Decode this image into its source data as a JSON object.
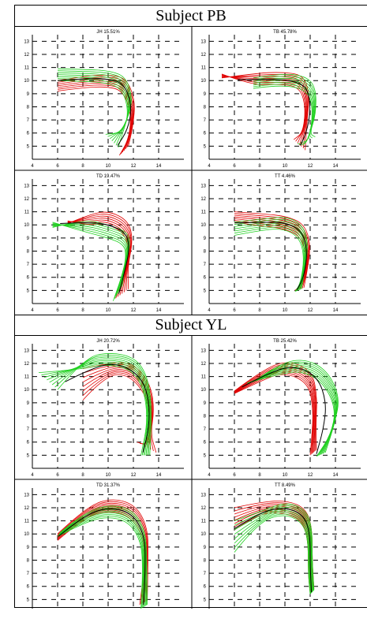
{
  "figure": {
    "subjects": [
      "Subject PB",
      "Subject YL"
    ]
  },
  "colors": {
    "red": "#e00000",
    "green": "#1fd01f",
    "black": "#000000",
    "grid": "#000000"
  },
  "chart_data": [
    {
      "type": "line",
      "subject": "Subject PB",
      "title": "JH  15.51%",
      "xlim": [
        4,
        16
      ],
      "ylim": [
        4,
        13.5
      ],
      "x_ticks": [
        4,
        6,
        8,
        10,
        12,
        14
      ],
      "y_ticks": [
        5,
        6,
        7,
        8,
        9,
        10,
        11,
        12,
        13
      ],
      "grid": true,
      "series": [
        {
          "color": "red",
          "count": 7,
          "start": [
            [
              6,
              9.2
            ],
            [
              6,
              10.0
            ]
          ],
          "path": [
            [
              6,
              9.6
            ],
            [
              8,
              9.9
            ],
            [
              10,
              10.0
            ],
            [
              11.3,
              9.7
            ],
            [
              12.0,
              8.0
            ],
            [
              11.8,
              6.0
            ],
            [
              11.2,
              4.7
            ]
          ],
          "end": [
            [
              10.9,
              4.3
            ],
            [
              11.6,
              5.0
            ]
          ]
        },
        {
          "color": "green",
          "count": 7,
          "start": [
            [
              6,
              10.0
            ],
            [
              6,
              10.9
            ]
          ],
          "path": [
            [
              6,
              10.4
            ],
            [
              8,
              10.4
            ],
            [
              10,
              10.3
            ],
            [
              11.3,
              9.8
            ],
            [
              11.8,
              8.0
            ],
            [
              11.3,
              6.5
            ],
            [
              10.3,
              5.4
            ]
          ],
          "end": [
            [
              9.8,
              5.9
            ],
            [
              10.8,
              4.9
            ]
          ]
        }
      ]
    },
    {
      "type": "line",
      "subject": "Subject PB",
      "title": "TB  45.78%",
      "xlim": [
        4,
        16
      ],
      "ylim": [
        4,
        13.5
      ],
      "x_ticks": [
        4,
        6,
        8,
        10,
        12,
        14
      ],
      "y_ticks": [
        5,
        6,
        7,
        8,
        9,
        10,
        11,
        12,
        13
      ],
      "grid": true,
      "series": [
        {
          "color": "red",
          "count": 7,
          "start": [
            [
              5.0,
              10.5
            ],
            [
              5.0,
              10.2
            ]
          ],
          "path": [
            [
              5.0,
              10.35
            ],
            [
              7.5,
              10.1
            ],
            [
              9.5,
              10.2
            ],
            [
              11.3,
              10.0
            ],
            [
              11.8,
              8.5
            ],
            [
              11.6,
              6.5
            ],
            [
              11.1,
              5.1
            ]
          ],
          "end": [
            [
              10.7,
              5.5
            ],
            [
              11.6,
              4.7
            ]
          ]
        },
        {
          "color": "green",
          "count": 7,
          "start": [
            [
              7.5,
              9.4
            ],
            [
              7.5,
              10.2
            ]
          ],
          "path": [
            [
              7.5,
              9.8
            ],
            [
              9.5,
              10.1
            ],
            [
              11.5,
              9.9
            ],
            [
              12.3,
              9.0
            ],
            [
              12.3,
              7.0
            ],
            [
              11.8,
              5.5
            ],
            [
              11.3,
              5.0
            ]
          ],
          "end": [
            [
              11.0,
              5.2
            ],
            [
              12.4,
              5.7
            ]
          ]
        }
      ]
    },
    {
      "type": "line",
      "subject": "Subject PB",
      "title": "TD  19.47%",
      "xlim": [
        4,
        16
      ],
      "ylim": [
        4,
        13.5
      ],
      "x_ticks": [
        4,
        6,
        8,
        10,
        12,
        14
      ],
      "y_ticks": [
        5,
        6,
        7,
        8,
        9,
        10,
        11,
        12,
        13
      ],
      "grid": true,
      "series": [
        {
          "color": "red",
          "count": 7,
          "start": [
            [
              6.8,
              10.3
            ],
            [
              6.8,
              10.1
            ]
          ],
          "path": [
            [
              6.8,
              10.2
            ],
            [
              8.5,
              10.4
            ],
            [
              10.0,
              10.6
            ],
            [
              11.5,
              9.8
            ],
            [
              11.8,
              8.3
            ],
            [
              11.4,
              6.4
            ],
            [
              11.0,
              4.7
            ]
          ],
          "end": [
            [
              10.6,
              4.4
            ],
            [
              11.6,
              5.1
            ]
          ]
        },
        {
          "color": "green",
          "count": 7,
          "start": [
            [
              5.6,
              10.2
            ],
            [
              5.6,
              9.8
            ]
          ],
          "path": [
            [
              5.6,
              10.0
            ],
            [
              8.0,
              10.0
            ],
            [
              10.0,
              9.5
            ],
            [
              11.4,
              9.0
            ],
            [
              11.6,
              8.0
            ],
            [
              11.2,
              6.4
            ],
            [
              10.7,
              4.8
            ]
          ],
          "end": [
            [
              10.4,
              4.2
            ],
            [
              11.1,
              5.3
            ]
          ]
        }
      ]
    },
    {
      "type": "line",
      "subject": "Subject PB",
      "title": "TT  4.46%",
      "xlim": [
        4,
        16
      ],
      "ylim": [
        4,
        13.5
      ],
      "x_ticks": [
        4,
        6,
        8,
        10,
        12,
        14
      ],
      "y_ticks": [
        5,
        6,
        7,
        8,
        9,
        10,
        11,
        12,
        13
      ],
      "grid": true,
      "series": [
        {
          "color": "red",
          "count": 7,
          "start": [
            [
              6.0,
              10.2
            ],
            [
              6.0,
              11.0
            ]
          ],
          "path": [
            [
              6.0,
              10.6
            ],
            [
              8.0,
              10.4
            ],
            [
              10.0,
              10.2
            ],
            [
              11.4,
              9.6
            ],
            [
              11.9,
              8.0
            ],
            [
              11.6,
              6.0
            ],
            [
              11.0,
              5.1
            ]
          ],
          "end": [
            [
              10.8,
              5.0
            ],
            [
              11.5,
              5.2
            ]
          ]
        },
        {
          "color": "green",
          "count": 7,
          "start": [
            [
              6.0,
              9.2
            ],
            [
              6.0,
              10.2
            ]
          ],
          "path": [
            [
              6.0,
              9.7
            ],
            [
              8.0,
              10.0
            ],
            [
              10.0,
              10.2
            ],
            [
              11.3,
              9.5
            ],
            [
              11.7,
              8.0
            ],
            [
              11.4,
              6.0
            ],
            [
              10.9,
              5.0
            ]
          ],
          "end": [
            [
              10.8,
              4.9
            ],
            [
              11.3,
              5.1
            ]
          ]
        }
      ]
    },
    {
      "type": "line",
      "subject": "Subject YL",
      "title": "JH  20.72%",
      "xlim": [
        4,
        16
      ],
      "ylim": [
        4,
        13.5
      ],
      "x_ticks": [
        4,
        6,
        8,
        10,
        12,
        14
      ],
      "y_ticks": [
        5,
        6,
        7,
        8,
        9,
        10,
        11,
        12,
        13
      ],
      "grid": true,
      "series": [
        {
          "color": "red",
          "count": 8,
          "start": [
            [
              8.0,
              9.2
            ],
            [
              8.0,
              11.6
            ]
          ],
          "path": [
            [
              8.0,
              10.4
            ],
            [
              10.0,
              11.6
            ],
            [
              11.8,
              11.6
            ],
            [
              13.2,
              10.0
            ],
            [
              13.5,
              8.0
            ],
            [
              13.2,
              6.2
            ],
            [
              12.7,
              5.2
            ]
          ],
          "end": [
            [
              12.3,
              6.0
            ],
            [
              13.8,
              5.2
            ]
          ]
        },
        {
          "color": "green",
          "count": 8,
          "start": [
            [
              4.5,
              11.3
            ],
            [
              6.0,
              10.0
            ]
          ],
          "path": [
            [
              5.2,
              10.8
            ],
            [
              8.0,
              12.0
            ],
            [
              10.0,
              12.4
            ],
            [
              12.0,
              12.0
            ],
            [
              13.0,
              10.5
            ],
            [
              13.3,
              8.0
            ],
            [
              12.8,
              5.2
            ]
          ],
          "end": [
            [
              12.6,
              5.0
            ],
            [
              13.3,
              5.0
            ]
          ]
        }
      ]
    },
    {
      "type": "line",
      "subject": "Subject YL",
      "title": "TB  25.42%",
      "xlim": [
        4,
        16
      ],
      "ylim": [
        4,
        13.5
      ],
      "x_ticks": [
        4,
        6,
        8,
        10,
        12,
        14
      ],
      "y_ticks": [
        5,
        6,
        7,
        8,
        9,
        10,
        11,
        12,
        13
      ],
      "grid": true,
      "series": [
        {
          "color": "red",
          "count": 8,
          "start": [
            [
              6.0,
              9.7
            ],
            [
              6.0,
              9.9
            ]
          ],
          "path": [
            [
              6.0,
              9.8
            ],
            [
              8.0,
              11.0
            ],
            [
              10.0,
              11.8
            ],
            [
              12.0,
              11.0
            ],
            [
              12.4,
              9.0
            ],
            [
              12.3,
              7.0
            ],
            [
              12.2,
              5.2
            ]
          ],
          "end": [
            [
              12.0,
              5.0
            ],
            [
              12.5,
              5.4
            ]
          ]
        },
        {
          "color": "green",
          "count": 8,
          "start": [
            [
              7.0,
              10.5
            ],
            [
              7.5,
              10.6
            ]
          ],
          "path": [
            [
              7.2,
              10.6
            ],
            [
              9.5,
              11.6
            ],
            [
              11.5,
              11.9
            ],
            [
              13.2,
              11.0
            ],
            [
              14.2,
              9.0
            ],
            [
              13.8,
              7.0
            ],
            [
              12.8,
              5.0
            ]
          ],
          "end": [
            [
              12.5,
              4.9
            ],
            [
              13.2,
              5.2
            ]
          ]
        }
      ]
    },
    {
      "type": "line",
      "subject": "Subject YL",
      "title": "TD  31.37%",
      "xlim": [
        4,
        16
      ],
      "ylim": [
        4,
        13.5
      ],
      "x_ticks": [
        4,
        6,
        8,
        10,
        12,
        14
      ],
      "y_ticks": [
        5,
        6,
        7,
        8,
        9,
        10,
        11,
        12,
        13
      ],
      "grid": true,
      "series": [
        {
          "color": "red",
          "count": 8,
          "start": [
            [
              6.0,
              9.5
            ],
            [
              6.0,
              10.0
            ]
          ],
          "path": [
            [
              6.0,
              9.7
            ],
            [
              8.0,
              11.5
            ],
            [
              10.0,
              12.3
            ],
            [
              12.0,
              11.8
            ],
            [
              13.0,
              10.0
            ],
            [
              13.0,
              7.5
            ],
            [
              12.8,
              4.8
            ]
          ],
          "end": [
            [
              12.5,
              4.6
            ],
            [
              13.1,
              4.9
            ]
          ]
        },
        {
          "color": "green",
          "count": 8,
          "start": [
            [
              6.0,
              9.8
            ],
            [
              6.2,
              10.1
            ]
          ],
          "path": [
            [
              6.1,
              9.9
            ],
            [
              8.0,
              11.2
            ],
            [
              10.0,
              11.8
            ],
            [
              11.8,
              11.4
            ],
            [
              12.8,
              9.8
            ],
            [
              12.9,
              7.5
            ],
            [
              12.8,
              4.4
            ]
          ],
          "end": [
            [
              12.6,
              4.3
            ],
            [
              13.1,
              4.6
            ]
          ]
        }
      ]
    },
    {
      "type": "line",
      "subject": "Subject YL",
      "title": "TT  8.49%",
      "xlim": [
        4,
        16
      ],
      "ylim": [
        4,
        13.5
      ],
      "x_ticks": [
        4,
        6,
        8,
        10,
        12,
        14
      ],
      "y_ticks": [
        5,
        6,
        7,
        8,
        9,
        10,
        11,
        12,
        13
      ],
      "grid": true,
      "series": [
        {
          "color": "red",
          "count": 8,
          "start": [
            [
              6.0,
              10.3
            ],
            [
              6.0,
              12.0
            ]
          ],
          "path": [
            [
              6.0,
              11.2
            ],
            [
              8.0,
              12.0
            ],
            [
              10.0,
              12.1
            ],
            [
              11.5,
              11.5
            ],
            [
              12.0,
              10.0
            ],
            [
              12.0,
              7.5
            ],
            [
              12.1,
              5.6
            ]
          ],
          "end": [
            [
              12.0,
              5.5
            ],
            [
              12.3,
              5.8
            ]
          ]
        },
        {
          "color": "green",
          "count": 8,
          "start": [
            [
              6.0,
              8.6
            ],
            [
              6.0,
              11.0
            ]
          ],
          "path": [
            [
              6.0,
              9.6
            ],
            [
              8.0,
              11.3
            ],
            [
              10.0,
              12.0
            ],
            [
              11.5,
              11.4
            ],
            [
              12.0,
              10.0
            ],
            [
              12.0,
              7.5
            ],
            [
              12.1,
              5.5
            ]
          ],
          "end": [
            [
              12.0,
              5.4
            ],
            [
              12.3,
              5.7
            ]
          ]
        }
      ]
    }
  ]
}
